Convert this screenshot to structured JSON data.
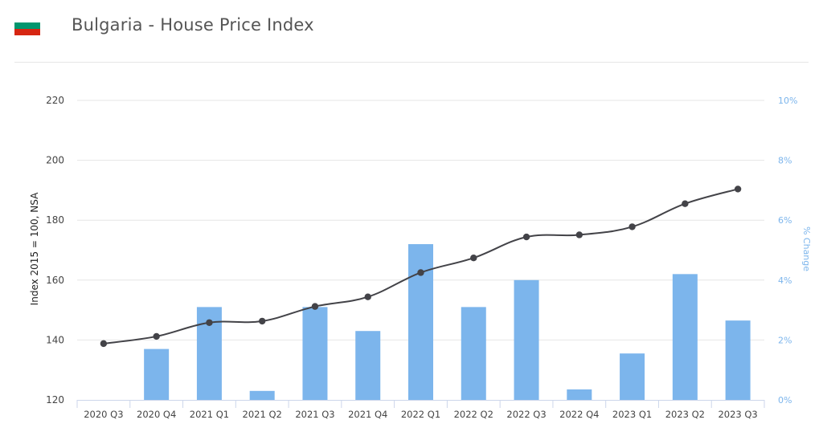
{
  "header": {
    "title": "Bulgaria - House Price Index",
    "flag": {
      "name": "bulgaria-flag",
      "colors": [
        "#ffffff",
        "#00966e",
        "#d62612"
      ]
    }
  },
  "chart_data": {
    "type": "bar+line",
    "categories": [
      "2020 Q3",
      "2020 Q4",
      "2021 Q1",
      "2021 Q2",
      "2021 Q3",
      "2021 Q4",
      "2022 Q1",
      "2022 Q2",
      "2022 Q3",
      "2022 Q4",
      "2023 Q1",
      "2023 Q2",
      "2023 Q3"
    ],
    "series": [
      {
        "type": "bar",
        "axis": "right",
        "color": "#7cb5ec",
        "values": [
          null,
          1.7,
          3.1,
          0.3,
          3.1,
          2.3,
          5.2,
          3.1,
          4.0,
          0.35,
          1.55,
          4.2,
          2.65
        ]
      },
      {
        "type": "line",
        "axis": "left",
        "color": "#434348",
        "values": [
          138.8,
          141.2,
          145.8,
          146.3,
          151.2,
          154.4,
          162.5,
          167.4,
          174.4,
          175.1,
          177.8,
          185.5,
          190.4
        ]
      }
    ],
    "left_axis": {
      "label": "Index 2015 = 100, NSA",
      "min": 120,
      "max": 220,
      "ticks": [
        "120",
        "140",
        "160",
        "180",
        "200",
        "220"
      ]
    },
    "right_axis": {
      "label": "% Change",
      "min": 0,
      "max": 10,
      "color": "#7cb5ec",
      "ticks": [
        "0%",
        "2%",
        "4%",
        "6%",
        "8%",
        "10%"
      ]
    },
    "grid": true,
    "legend": "none"
  }
}
